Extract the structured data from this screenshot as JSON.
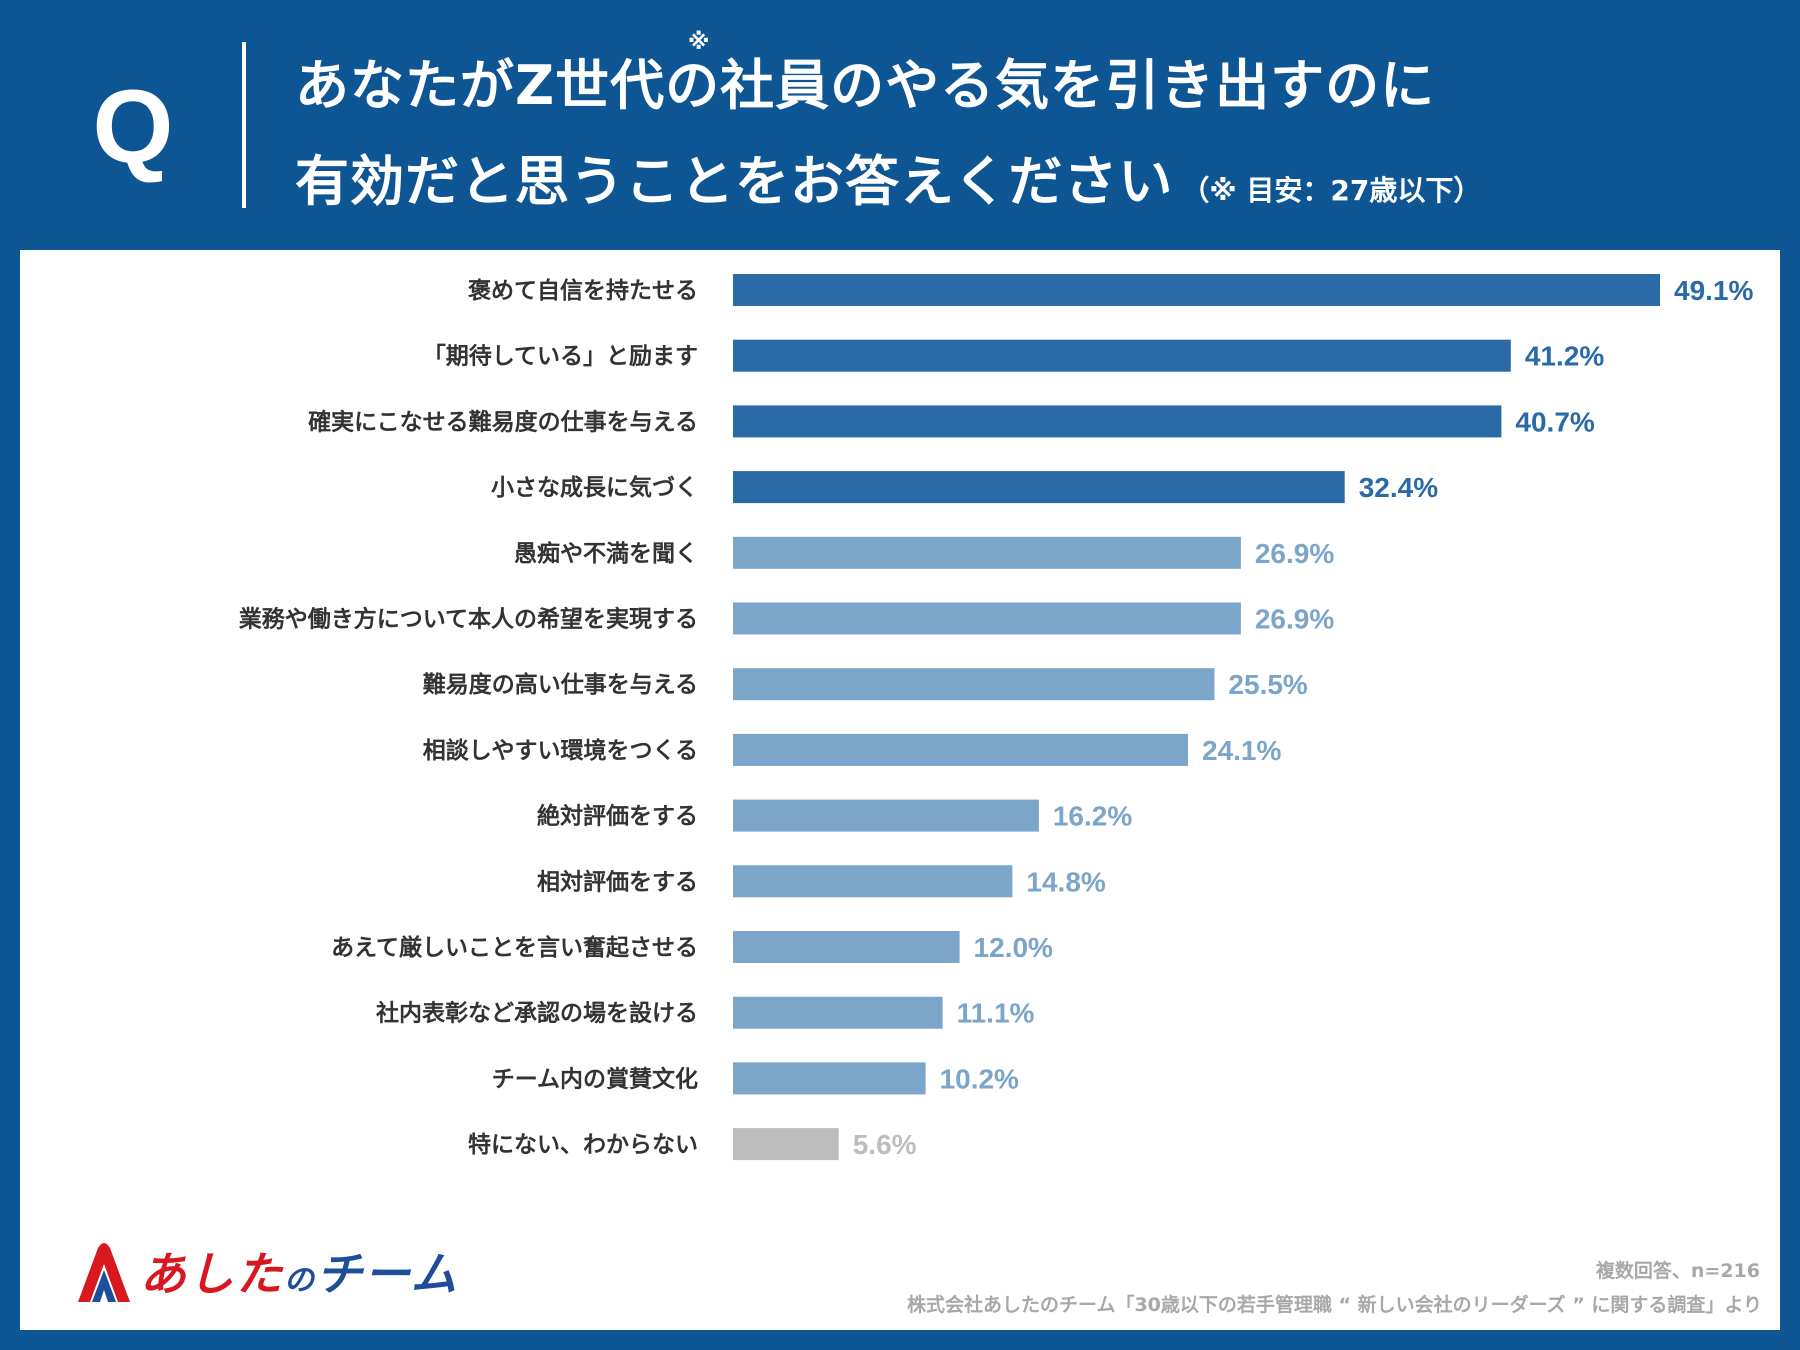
{
  "header": {
    "q_letter": "Q",
    "title_line1": "あなたがZ世代の社員のやる気を引き出すのに",
    "title_line2": "有効だと思うことをお答えください",
    "title_note": "（※ 目安：27歳以下）",
    "footnote_mark": "※"
  },
  "chart_data": {
    "type": "bar",
    "orientation": "horizontal",
    "unit": "%",
    "xlim": [
      0,
      50
    ],
    "categories": [
      "褒めて自信を持たせる",
      "「期待している」と励ます",
      "確実にこなせる難易度の仕事を与える",
      "小さな成長に気づく",
      "愚痴や不満を聞く",
      "業務や働き方について本人の希望を実現する",
      "難易度の高い仕事を与える",
      "相談しやすい環境をつくる",
      "絶対評価をする",
      "相対評価をする",
      "あえて厳しいことを言い奮起させる",
      "社内表彰など承認の場を設ける",
      "チーム内の賞賛文化",
      "特にない、わからない"
    ],
    "values": [
      49.1,
      41.2,
      40.7,
      32.4,
      26.9,
      26.9,
      25.5,
      24.1,
      16.2,
      14.8,
      12.0,
      11.1,
      10.2,
      5.6
    ],
    "value_labels": [
      "49.1%",
      "41.2%",
      "40.7%",
      "32.4%",
      "26.9%",
      "26.9%",
      "25.5%",
      "24.1%",
      "16.2%",
      "14.8%",
      "12.0%",
      "11.1%",
      "10.2%",
      "5.6%"
    ],
    "groups": [
      "top",
      "top",
      "top",
      "top",
      "mid",
      "mid",
      "mid",
      "mid",
      "mid",
      "mid",
      "mid",
      "mid",
      "mid",
      "none"
    ],
    "colors": {
      "top": "#2a6aa7",
      "mid": "#7ba5c9",
      "none": "#bdbdbd"
    },
    "label_colors": {
      "top": "#2a6aa7",
      "mid": "#7ba5c9",
      "none": "#bdbdbd"
    },
    "category_label_color": "#333333",
    "grid": false
  },
  "logo": {
    "part1": "あした",
    "part2": "の",
    "part3": "チーム"
  },
  "notes": {
    "sample": "複数回答、n=216",
    "source": "株式会社あしたのチーム「30歳以下の若手管理職 “ 新しい会社のリーダーズ ” に関する調査」より"
  },
  "colors": {
    "background": "#0e5593",
    "panel": "#ffffff",
    "logo_red": "#d7181f",
    "logo_blue": "#1e4d9a",
    "note_gray": "#a8a8a8"
  }
}
